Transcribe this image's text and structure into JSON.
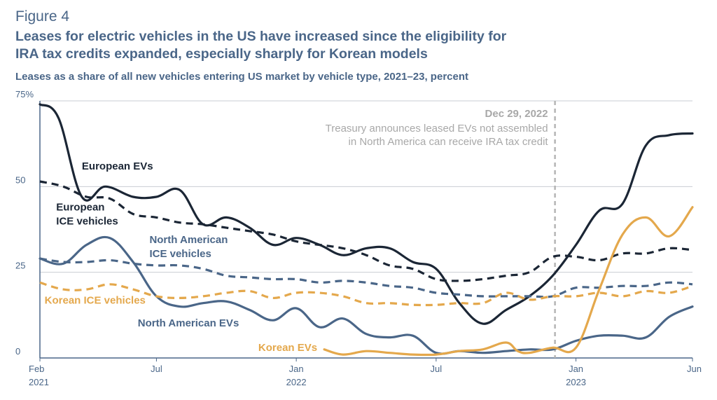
{
  "figure_label": "Figure 4",
  "title_line1": "Leases for electric vehicles in the US have increased since the eligibility for",
  "title_line2": "IRA tax credits expanded, especially sharply for Korean models",
  "subtitle": "Leases as a share of all new vehicles entering US market by vehicle type, 2021–23, percent",
  "chart_data": {
    "type": "line",
    "x_unit": "month index (0 = Feb 2021, 28 = Jun 2023)",
    "ylim": [
      0,
      75
    ],
    "xlim": [
      0,
      28
    ],
    "y_ticks": [
      {
        "value": 0,
        "label": "0"
      },
      {
        "value": 25,
        "label": "25"
      },
      {
        "value": 50,
        "label": "50"
      },
      {
        "value": 75,
        "label": "75%"
      }
    ],
    "x_ticks": [
      {
        "x": 0,
        "line1": "Feb",
        "line2": "2021"
      },
      {
        "x": 5,
        "line1": "Jul",
        "line2": ""
      },
      {
        "x": 11,
        "line1": "Jan",
        "line2": "2022"
      },
      {
        "x": 17,
        "line1": "Jul",
        "line2": ""
      },
      {
        "x": 23,
        "line1": "Jan",
        "line2": "2023"
      },
      {
        "x": 28,
        "line1": "Jun",
        "line2": ""
      }
    ],
    "grid": true,
    "annotation": {
      "x": 22.1,
      "title": "Dec 29, 2022",
      "line1": "Treasury announces leased EVs not assembled",
      "line2": "in North America can receive IRA tax credit"
    },
    "series": [
      {
        "name": "European EVs",
        "color": "#1b2635",
        "dashed": false,
        "label_lines": [
          "European EVs"
        ],
        "label_at": [
          1.8,
          55
        ],
        "label_anchor": "start",
        "x": [
          0,
          0.8,
          1.8,
          2.8,
          4,
          5,
          6,
          7,
          8,
          9,
          10,
          11,
          12,
          13,
          14,
          15,
          16,
          17,
          18,
          19,
          20,
          21,
          22,
          23,
          24,
          25,
          26,
          27,
          28
        ],
        "y": [
          74,
          70,
          47,
          50,
          47,
          47,
          49,
          39,
          41,
          38,
          33,
          35,
          33,
          30,
          32,
          32,
          28,
          26,
          16,
          10,
          14,
          18,
          24,
          33,
          43,
          45,
          62,
          65,
          65.5
        ]
      },
      {
        "name": "European ICE vehicles",
        "color": "#1b2635",
        "dashed": true,
        "label_lines": [
          "European",
          "ICE vehicles"
        ],
        "label_at": [
          0.7,
          43
        ],
        "label_anchor": "start",
        "x": [
          0,
          1,
          2,
          3,
          4,
          5,
          6,
          7,
          8,
          9,
          10,
          11,
          12,
          13,
          14,
          15,
          16,
          17,
          18,
          19,
          20,
          21,
          22,
          23,
          24,
          25,
          26,
          27,
          28
        ],
        "y": [
          51.5,
          50,
          47,
          46.5,
          42,
          41,
          39.5,
          39,
          38,
          37,
          36,
          34,
          33,
          32,
          30,
          27,
          26,
          23,
          22.5,
          23,
          24,
          25,
          29.5,
          29.5,
          28.5,
          30.5,
          30.5,
          32,
          31.5
        ]
      },
      {
        "name": "North American ICE vehicles",
        "color": "#4a6688",
        "dashed": true,
        "label_lines": [
          "North American",
          "ICE vehicles"
        ],
        "label_at": [
          4.7,
          33.5
        ],
        "label_anchor": "start",
        "x": [
          0,
          1,
          2,
          3,
          4,
          5,
          6,
          7,
          8,
          9,
          10,
          11,
          12,
          13,
          14,
          15,
          16,
          17,
          18,
          19,
          20,
          21,
          22,
          23,
          24,
          25,
          26,
          27,
          28
        ],
        "y": [
          29,
          28,
          28,
          28.5,
          27.5,
          27,
          27,
          26,
          24,
          23.5,
          23,
          23,
          22,
          22.5,
          22,
          21,
          20.5,
          19,
          18.5,
          18,
          18,
          18,
          18,
          20.5,
          20.5,
          21,
          21,
          22,
          21.5
        ]
      },
      {
        "name": "North American EVs",
        "color": "#4a6688",
        "dashed": false,
        "label_lines": [
          "North American EVs"
        ],
        "label_at": [
          4.2,
          9.2
        ],
        "label_anchor": "start",
        "x": [
          0,
          1,
          2,
          3,
          4,
          5,
          6,
          7,
          8,
          9,
          10,
          11,
          12,
          13,
          14,
          15,
          16,
          17,
          18,
          19,
          20,
          21,
          22,
          23,
          24,
          25,
          26,
          27,
          28
        ],
        "y": [
          29,
          27.5,
          33,
          35,
          28,
          18,
          15,
          16,
          16.5,
          14,
          11,
          14.5,
          9,
          11.5,
          7,
          6,
          6.5,
          1.5,
          2,
          1.5,
          2,
          2.5,
          2.5,
          5,
          6.5,
          6.5,
          6,
          12,
          15
        ]
      },
      {
        "name": "Korean ICE vehicles",
        "color": "#e4a84c",
        "dashed": true,
        "label_lines": [
          "Korean ICE vehicles"
        ],
        "label_at": [
          0.2,
          15.8
        ],
        "label_anchor": "start",
        "x": [
          0,
          1,
          2,
          3,
          4,
          5,
          6,
          7,
          8,
          9,
          10,
          11,
          12,
          13,
          14,
          15,
          16,
          17,
          18,
          19,
          20,
          21,
          22,
          23,
          24,
          25,
          26,
          27,
          28
        ],
        "y": [
          22,
          20,
          20,
          21.5,
          20,
          18,
          17.5,
          18,
          19,
          19.5,
          17.5,
          19,
          19,
          18,
          16,
          16,
          15.5,
          15.5,
          16,
          16,
          19,
          17,
          18,
          18,
          19,
          18,
          19.5,
          19,
          21
        ]
      },
      {
        "name": "Korean EVs",
        "color": "#e4a84c",
        "dashed": false,
        "label_lines": [
          "Korean EVs"
        ],
        "label_at": [
          11.9,
          2.0
        ],
        "label_anchor": "end",
        "x": [
          12.2,
          13,
          14,
          15,
          16,
          17,
          18,
          19,
          20,
          20.5,
          21,
          22,
          23,
          24,
          25,
          26,
          27,
          28
        ],
        "y": [
          2.5,
          1,
          2,
          1.5,
          1,
          1,
          2,
          2.5,
          4.5,
          2,
          1.5,
          3,
          3,
          20,
          36,
          41,
          35.5,
          44
        ]
      }
    ]
  }
}
